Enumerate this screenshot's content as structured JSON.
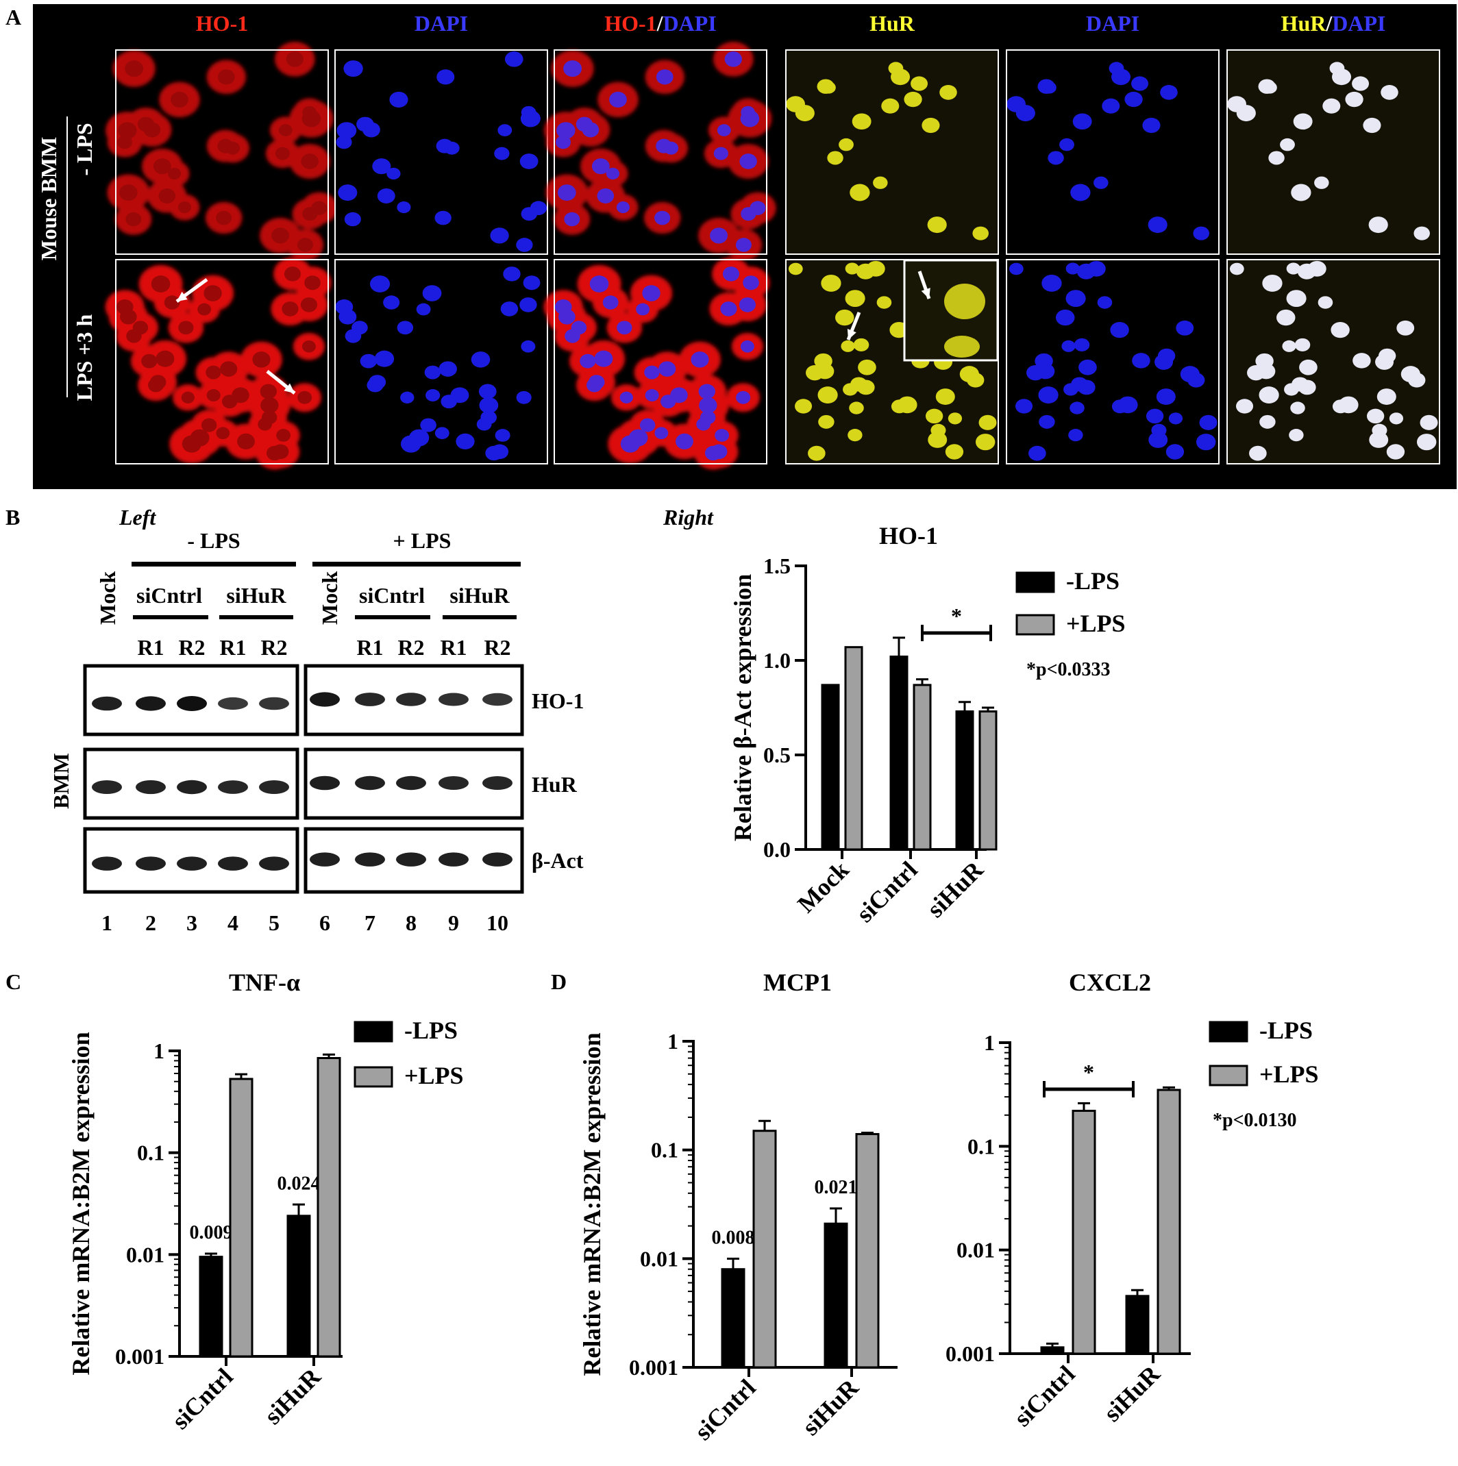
{
  "panels": {
    "A": {
      "letter": "A",
      "row_group_label": "Mouse BMM",
      "row_labels": [
        "- LPS",
        "LPS +3 h"
      ],
      "col_headers": [
        {
          "parts": [
            {
              "t": "HO-1",
              "c": "#ff2a1a"
            }
          ]
        },
        {
          "parts": [
            {
              "t": "DAPI",
              "c": "#3a3aff"
            }
          ]
        },
        {
          "parts": [
            {
              "t": "HO-1",
              "c": "#ff2a1a"
            },
            {
              "t": "/",
              "c": "#ffffff"
            },
            {
              "t": "DAPI",
              "c": "#3a3aff"
            }
          ]
        },
        {
          "parts": [
            {
              "t": "HuR",
              "c": "#ffff33"
            }
          ]
        },
        {
          "parts": [
            {
              "t": "DAPI",
              "c": "#3a3aff"
            }
          ]
        },
        {
          "parts": [
            {
              "t": "HuR",
              "c": "#ffff33"
            },
            {
              "t": "/",
              "c": "#ffffff"
            },
            {
              "t": "DAPI",
              "c": "#3a3aff"
            }
          ]
        }
      ],
      "colors": {
        "ho1": "#e81010",
        "dapi": "#1c1ce0",
        "hur": "#d8d61a",
        "merge_hur": "#e8e8f4",
        "background": "#000000"
      }
    },
    "B": {
      "letter": "B",
      "left_title": "Left",
      "right_title": "Right",
      "group_labels": [
        "- LPS",
        "+ LPS"
      ],
      "lane_header_mock": "Mock",
      "lane_groups": [
        "siCntrl",
        "siHuR",
        "siCntrl",
        "siHuR"
      ],
      "replicates": [
        "R1",
        "R2",
        "R1",
        "R2",
        "R1",
        "R2",
        "R1",
        "R2"
      ],
      "row_side_label": "BMM",
      "blot_rows": [
        "HO-1",
        "HuR",
        "β-Act"
      ],
      "lane_numbers": [
        "1",
        "2",
        "3",
        "4",
        "5",
        "6",
        "7",
        "8",
        "9",
        "10"
      ],
      "band_intensity": {
        "HO-1": [
          0.85,
          0.92,
          1.0,
          0.62,
          0.66,
          0.92,
          0.78,
          0.76,
          0.7,
          0.64
        ],
        "HuR": [
          0.8,
          0.82,
          0.84,
          0.78,
          0.8,
          0.86,
          0.84,
          0.84,
          0.8,
          0.8
        ],
        "β-Act": [
          0.85,
          0.85,
          0.85,
          0.85,
          0.85,
          0.85,
          0.85,
          0.85,
          0.85,
          0.85
        ]
      }
    },
    "C": {
      "letter": "C"
    },
    "D": {
      "letter": "D"
    }
  },
  "chart_data": [
    {
      "id": "B-right",
      "type": "bar",
      "title": "HO-1",
      "ylabel": "Relative β-Act expression",
      "categories": [
        "Mock",
        "siCntrl",
        "siHuR"
      ],
      "scale": "linear",
      "ylim": [
        0,
        1.5
      ],
      "yticks": [
        "0.0",
        "0.5",
        "1.0",
        "1.5"
      ],
      "series": [
        {
          "name": "-LPS",
          "values": [
            0.87,
            1.02,
            0.73
          ],
          "errors": [
            0,
            0.1,
            0.05
          ]
        },
        {
          "name": "+LPS",
          "values": [
            1.07,
            0.87,
            0.73
          ],
          "errors": [
            0,
            0.03,
            0.02
          ]
        }
      ],
      "significance": {
        "label": "*",
        "note": "*p<0.0333",
        "span": [
          "siCntrl:+LPS",
          "siHuR:+LPS"
        ]
      },
      "colors": {
        "-LPS": "#000000",
        "+LPS": "#a0a0a0"
      },
      "legend": "right"
    },
    {
      "id": "C",
      "type": "bar",
      "title": "TNF-α",
      "ylabel": "Relative mRNA:B2M expression",
      "categories": [
        "siCntrl",
        "siHuR"
      ],
      "scale": "log",
      "ylim": [
        0.001,
        1
      ],
      "yticks": [
        "0.001",
        "0.01",
        "0.1",
        "1"
      ],
      "series": [
        {
          "name": "-LPS",
          "values": [
            0.0095,
            0.024
          ],
          "errors": [
            0.0007,
            0.007
          ],
          "labels": [
            "0.009",
            "0.024"
          ]
        },
        {
          "name": "+LPS",
          "values": [
            0.53,
            0.85
          ],
          "errors": [
            0.06,
            0.07
          ]
        }
      ],
      "colors": {
        "-LPS": "#000000",
        "+LPS": "#a0a0a0"
      },
      "legend": "top-right"
    },
    {
      "id": "D-MCP1",
      "type": "bar",
      "title": "MCP1",
      "ylabel": "Relative mRNA:B2M expression",
      "categories": [
        "siCntrl",
        "siHuR"
      ],
      "scale": "log",
      "ylim": [
        0.001,
        1
      ],
      "yticks": [
        "0.001",
        "0.01",
        "0.1",
        "1"
      ],
      "series": [
        {
          "name": "-LPS",
          "values": [
            0.008,
            0.021
          ],
          "errors": [
            0.002,
            0.008
          ],
          "labels": [
            "0.008",
            "0.021"
          ]
        },
        {
          "name": "+LPS",
          "values": [
            0.15,
            0.14
          ],
          "errors": [
            0.035,
            0.004
          ]
        }
      ],
      "colors": {
        "-LPS": "#000000",
        "+LPS": "#a0a0a0"
      }
    },
    {
      "id": "D-CXCL2",
      "type": "bar",
      "title": "CXCL2",
      "ylabel": "",
      "categories": [
        "siCntrl",
        "siHuR"
      ],
      "scale": "log",
      "ylim": [
        0.001,
        1
      ],
      "yticks": [
        "0.001",
        "0.01",
        "0.1",
        "1"
      ],
      "series": [
        {
          "name": "-LPS",
          "values": [
            0.00115,
            0.0036
          ],
          "errors": [
            0.0001,
            0.0005
          ]
        },
        {
          "name": "+LPS",
          "values": [
            0.22,
            0.35
          ],
          "errors": [
            0.04,
            0.02
          ]
        }
      ],
      "significance": {
        "label": "*",
        "note": "*p<0.0130",
        "span": [
          "siCntrl:-LPS",
          "siHuR:-LPS"
        ]
      },
      "colors": {
        "-LPS": "#000000",
        "+LPS": "#a0a0a0"
      },
      "legend": "top-right"
    }
  ]
}
